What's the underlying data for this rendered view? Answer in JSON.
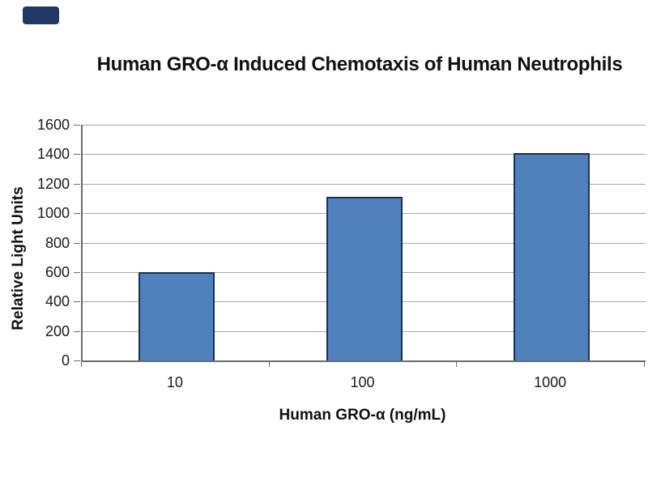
{
  "colors": {
    "bar_fill": "#4f81bd",
    "bar_border": "#1b3150",
    "gridline": "#a6a6a6",
    "axis_line": "#6b6b6b",
    "text": "#1a1a1a",
    "corner_mark": "#1f3864",
    "background": "#ffffff"
  },
  "chart_data": {
    "type": "bar",
    "title": "Human GRO-α Induced Chemotaxis of Human Neutrophils",
    "categories": [
      "10",
      "100",
      "1000"
    ],
    "values": [
      600,
      1110,
      1410
    ],
    "xlabel": "Human GRO-α (ng/mL)",
    "ylabel": "Relative Light Units",
    "ylim": [
      0,
      1600
    ],
    "ytick_step": 200,
    "yticks": [
      0,
      200,
      400,
      600,
      800,
      1000,
      1200,
      1400,
      1600
    ],
    "grid": true,
    "legend_position": "none",
    "bar_color": "#4f81bd"
  }
}
